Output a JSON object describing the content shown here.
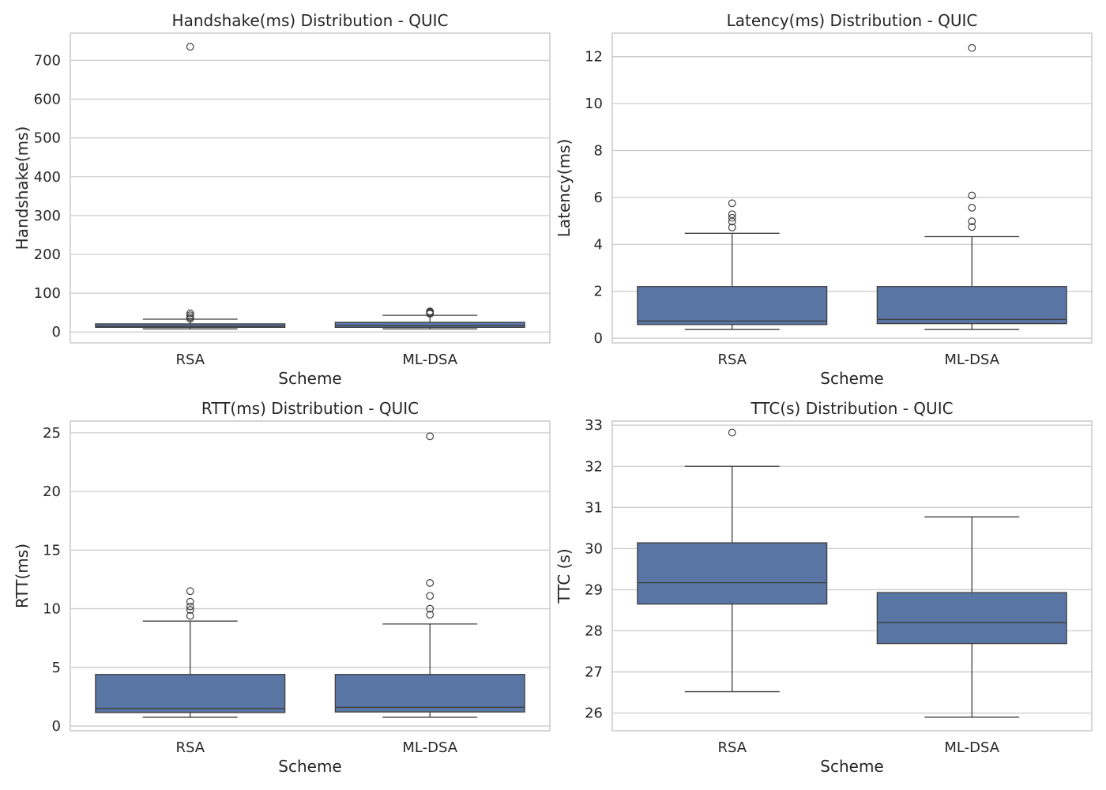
{
  "figure": {
    "box_color": "#5975a4",
    "line_color": "#3f3f3f",
    "grid_color": "#cccccc",
    "spine_color": "#cccccc"
  },
  "chart_data": [
    {
      "type": "box",
      "title": "Handshake(ms) Distribution - QUIC",
      "xlabel": "Scheme",
      "ylabel": "Handshake(ms)",
      "categories": [
        "RSA",
        "ML-DSA"
      ],
      "ylim": [
        -28,
        770
      ],
      "yticks": [
        0,
        100,
        200,
        300,
        400,
        500,
        600,
        700
      ],
      "ytick_labels": [
        "0",
        "100",
        "200",
        "300",
        "400",
        "500",
        "600",
        "700"
      ],
      "grid": true,
      "boxes": [
        {
          "category": "RSA",
          "whisker_low": 8,
          "q1": 12,
          "median": 15,
          "q3": 21,
          "whisker_high": 33,
          "outliers": [
            735,
            48,
            43,
            38,
            34
          ]
        },
        {
          "category": "ML-DSA",
          "whisker_low": 8,
          "q1": 12,
          "median": 16,
          "q3": 25,
          "whisker_high": 43,
          "outliers": [
            53,
            51,
            49,
            47
          ]
        }
      ]
    },
    {
      "type": "box",
      "title": "Latency(ms) Distribution - QUIC",
      "xlabel": "Scheme",
      "ylabel": "Latency(ms)",
      "categories": [
        "RSA",
        "ML-DSA"
      ],
      "ylim": [
        -0.2,
        13.0
      ],
      "yticks": [
        0,
        2,
        4,
        6,
        8,
        10,
        12
      ],
      "ytick_labels": [
        "0",
        "2",
        "4",
        "6",
        "8",
        "10",
        "12"
      ],
      "grid": true,
      "boxes": [
        {
          "category": "RSA",
          "whisker_low": 0.37,
          "q1": 0.58,
          "median": 0.73,
          "q3": 2.2,
          "whisker_high": 4.47,
          "outliers": [
            5.75,
            5.28,
            5.13,
            4.97,
            4.72
          ]
        },
        {
          "category": "ML-DSA",
          "whisker_low": 0.37,
          "q1": 0.62,
          "median": 0.8,
          "q3": 2.2,
          "whisker_high": 4.33,
          "outliers": [
            12.37,
            6.08,
            5.56,
            4.98,
            4.74
          ]
        }
      ]
    },
    {
      "type": "box",
      "title": "RTT(ms) Distribution - QUIC",
      "xlabel": "Scheme",
      "ylabel": "RTT(ms)",
      "categories": [
        "RSA",
        "ML-DSA"
      ],
      "ylim": [
        -0.4,
        26.0
      ],
      "yticks": [
        0,
        5,
        10,
        15,
        20,
        25
      ],
      "ytick_labels": [
        "0",
        "5",
        "10",
        "15",
        "20",
        "25"
      ],
      "grid": true,
      "boxes": [
        {
          "category": "RSA",
          "whisker_low": 0.75,
          "q1": 1.15,
          "median": 1.5,
          "q3": 4.4,
          "whisker_high": 8.95,
          "outliers": [
            11.5,
            10.6,
            10.2,
            9.9,
            9.4
          ]
        },
        {
          "category": "ML-DSA",
          "whisker_low": 0.75,
          "q1": 1.2,
          "median": 1.6,
          "q3": 4.4,
          "whisker_high": 8.7,
          "outliers": [
            24.7,
            12.2,
            11.1,
            10.0,
            9.5
          ]
        }
      ]
    },
    {
      "type": "box",
      "title": "TTC(s) Distribution - QUIC",
      "xlabel": "Scheme",
      "ylabel": "TTC (s)",
      "categories": [
        "RSA",
        "ML-DSA"
      ],
      "ylim": [
        25.57,
        33.1
      ],
      "yticks": [
        26,
        27,
        28,
        29,
        30,
        31,
        32,
        33
      ],
      "ytick_labels": [
        "26",
        "27",
        "28",
        "29",
        "30",
        "31",
        "32",
        "33"
      ],
      "grid": true,
      "boxes": [
        {
          "category": "RSA",
          "whisker_low": 26.52,
          "q1": 28.65,
          "median": 29.17,
          "q3": 30.14,
          "whisker_high": 32.0,
          "outliers": [
            32.82
          ]
        },
        {
          "category": "ML-DSA",
          "whisker_low": 25.9,
          "q1": 27.69,
          "median": 28.2,
          "q3": 28.93,
          "whisker_high": 30.77,
          "outliers": []
        }
      ]
    }
  ]
}
